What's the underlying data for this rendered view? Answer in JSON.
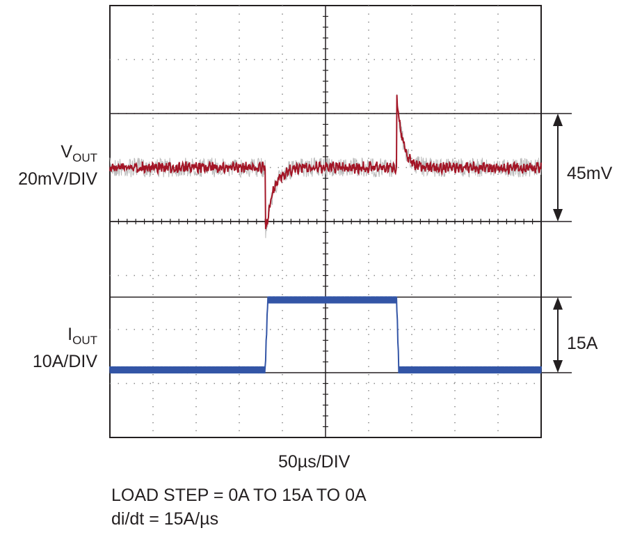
{
  "chart_data": {
    "type": "line",
    "grid": true,
    "grid_divisions": {
      "x": 10,
      "y": 8
    },
    "x_scale_label": "50µs/DIV",
    "notes": [
      "LOAD STEP = 0A TO 15A TO 0A",
      "di/dt = 15A/µs"
    ],
    "channels": {
      "vout": {
        "name_main": "V",
        "name_sub": "OUT",
        "scale": "20mV/DIV",
        "color": "#a31526",
        "envelope_color": "#b9b9b9",
        "annotation": "45mV"
      },
      "iout": {
        "name_main": "I",
        "name_sub": "OUT",
        "scale": "10A/DIV",
        "color": "#3355a6",
        "envelope_color": "#9fb0d6",
        "annotation": "15A"
      }
    },
    "events": {
      "load_step_up_div": 3.6,
      "load_step_down_div": 6.65,
      "load_step_from_A": 0,
      "load_step_to_A": 15,
      "deviation_mV": 45
    }
  }
}
